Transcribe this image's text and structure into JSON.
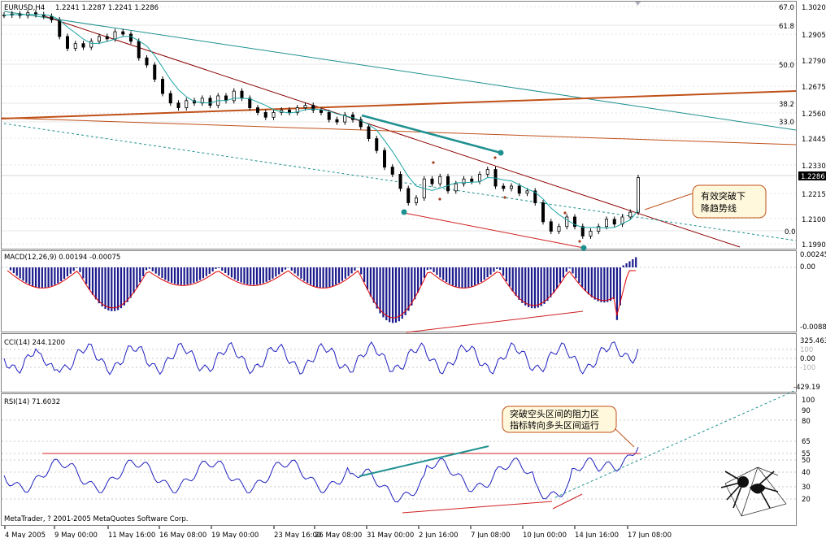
{
  "main": {
    "symbol_label": "EURUSD,H4",
    "ohlc_label": "1.2241 1.2287 1.2241 1.2286",
    "price_ticks": [
      "1.3020",
      "1.2905",
      "1.2790",
      "1.2675",
      "1.2560",
      "1.2445",
      "1.2330",
      "1.2215",
      "1.2100",
      "1.1990"
    ],
    "current_price": "1.2286",
    "fib_labels": [
      "67.0",
      "61.8",
      "50.0",
      "38.2",
      "33.0",
      "0.0"
    ],
    "annotation_breakout": [
      "有效突破下",
      "降趋势线"
    ]
  },
  "macd": {
    "label": "MACD(12,26,9) 0.00194 -0.00075",
    "ticks": [
      "0.00245",
      "0.00",
      "-0.0088"
    ]
  },
  "cci": {
    "label": "CCI(14) 244.1200",
    "ticks": [
      "325.463",
      "100",
      "0.00",
      "-100",
      "-429.19"
    ]
  },
  "rsi": {
    "label": "RSI(14) 71.6032",
    "ticks": [
      "100",
      "90",
      "80",
      "65",
      "55",
      "50",
      "40",
      "30",
      "20"
    ],
    "annotation": [
      "突破空头区间的阻力区",
      "指标转向多头区间运行"
    ],
    "copyright": "MetaTrader, ? 2001-2005 MetaQuotes Software Corp."
  },
  "time_axis": [
    "4 May 2005",
    "9 May 00:00",
    "11 May 16:00",
    "16 May 08:00",
    "19 May 00:00",
    "23 May 16:00",
    "26 May 08:00",
    "31 May 00:00",
    "2 Jun 16:00",
    "7 Jun 08:00",
    "10 Jun 00:00",
    "14 Jun 16:00",
    "17 Jun 08:00"
  ],
  "colors": {
    "candle": "#000000",
    "ma": "#1aa4a4",
    "trend_red": "#8b0000",
    "trend_orange": "#c05018",
    "trend_teal": "#1f9090",
    "macd_bar": "#1a1a8c",
    "signal": "#e00000",
    "indicator": "#2020c0",
    "grid": "#c8c8c8",
    "callout_bg": "#fff8dc",
    "callout_border": "#c05018"
  },
  "chart_data": {
    "type": "candlestick",
    "symbol": "EURUSD",
    "timeframe": "H4",
    "ylim_price": [
      1.199,
      1.302
    ],
    "close_path": [
      [
        0,
        1.297
      ],
      [
        1,
        1.2975
      ],
      [
        2,
        1.2968
      ],
      [
        3,
        1.298
      ],
      [
        4,
        1.2972
      ],
      [
        5,
        1.2965
      ],
      [
        6,
        1.295
      ],
      [
        7,
        1.288
      ],
      [
        8,
        1.283
      ],
      [
        9,
        1.285
      ],
      [
        10,
        1.2835
      ],
      [
        11,
        1.286
      ],
      [
        12,
        1.288
      ],
      [
        13,
        1.287
      ],
      [
        14,
        1.29
      ],
      [
        15,
        1.289
      ],
      [
        16,
        1.286
      ],
      [
        17,
        1.279
      ],
      [
        18,
        1.276
      ],
      [
        19,
        1.27
      ],
      [
        20,
        1.264
      ],
      [
        21,
        1.26
      ],
      [
        22,
        1.258
      ],
      [
        23,
        1.261
      ],
      [
        24,
        1.26
      ],
      [
        25,
        1.262
      ],
      [
        26,
        1.259
      ],
      [
        27,
        1.263
      ],
      [
        28,
        1.261
      ],
      [
        29,
        1.265
      ],
      [
        30,
        1.262
      ],
      [
        31,
        1.258
      ],
      [
        32,
        1.256
      ],
      [
        33,
        1.254
      ],
      [
        34,
        1.256
      ],
      [
        35,
        1.257
      ],
      [
        36,
        1.256
      ],
      [
        37,
        1.258
      ],
      [
        38,
        1.259
      ],
      [
        39,
        1.257
      ],
      [
        40,
        1.256
      ],
      [
        41,
        1.253
      ],
      [
        42,
        1.252
      ],
      [
        43,
        1.255
      ],
      [
        44,
        1.253
      ],
      [
        45,
        1.25
      ],
      [
        46,
        1.245
      ],
      [
        47,
        1.24
      ],
      [
        48,
        1.233
      ],
      [
        49,
        1.23
      ],
      [
        50,
        1.224
      ],
      [
        51,
        1.218
      ],
      [
        52,
        1.22
      ],
      [
        53,
        1.228
      ],
      [
        54,
        1.226
      ],
      [
        55,
        1.229
      ],
      [
        56,
        1.223
      ],
      [
        57,
        1.226
      ],
      [
        58,
        1.228
      ],
      [
        59,
        1.227
      ],
      [
        60,
        1.23
      ],
      [
        61,
        1.232
      ],
      [
        62,
        1.225
      ],
      [
        63,
        1.224
      ],
      [
        64,
        1.225
      ],
      [
        65,
        1.222
      ],
      [
        66,
        1.223
      ],
      [
        67,
        1.218
      ],
      [
        68,
        1.21
      ],
      [
        69,
        1.206
      ],
      [
        70,
        1.208
      ],
      [
        71,
        1.212
      ],
      [
        72,
        1.208
      ],
      [
        73,
        1.204
      ],
      [
        74,
        1.206
      ],
      [
        75,
        1.208
      ],
      [
        76,
        1.211
      ],
      [
        77,
        1.209
      ],
      [
        78,
        1.212
      ],
      [
        79,
        1.214
      ],
      [
        80,
        1.2286
      ]
    ],
    "macd": {
      "range": [
        -0.0088,
        0.00245
      ],
      "value": 0.00194,
      "signal": -0.00075
    },
    "cci": {
      "range": [
        -429.19,
        325.463
      ],
      "value": 244.12
    },
    "rsi": {
      "range": [
        0,
        100
      ],
      "value": 71.6032,
      "levels": [
        55
      ]
    }
  }
}
